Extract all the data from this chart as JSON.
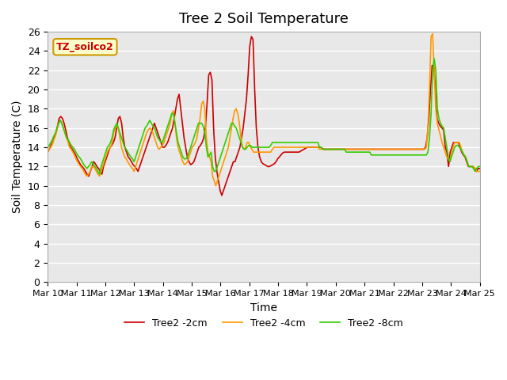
{
  "title": "Tree 2 Soil Temperature",
  "xlabel": "Time",
  "ylabel": "Soil Temperature (C)",
  "ylim": [
    0,
    26
  ],
  "yticks": [
    0,
    2,
    4,
    6,
    8,
    10,
    12,
    14,
    16,
    18,
    20,
    22,
    24,
    26
  ],
  "bg_color": "#e8e8e8",
  "fig_color": "#ffffff",
  "legend_label": "TZ_soilco2",
  "series_labels": [
    "Tree2 -2cm",
    "Tree2 -4cm",
    "Tree2 -8cm"
  ],
  "series_colors": [
    "#cc0000",
    "#ff9900",
    "#33cc00"
  ],
  "x_labels": [
    "Mar 10",
    "Mar 11",
    "Mar 12",
    "Mar 13",
    "Mar 14",
    "Mar 15",
    "Mar 16",
    "Mar 17",
    "Mar 18",
    "Mar 19",
    "Mar 20",
    "Mar 21",
    "Mar 22",
    "Mar 23",
    "Mar 24",
    "Mar 25"
  ],
  "n_days": 16,
  "tree2_2cm": [
    13.5,
    13.8,
    14.2,
    14.5,
    15.0,
    15.5,
    16.2,
    17.0,
    17.2,
    17.0,
    16.5,
    15.8,
    15.0,
    14.5,
    14.0,
    13.8,
    13.5,
    13.2,
    12.8,
    12.5,
    12.2,
    12.0,
    11.8,
    11.5,
    11.2,
    11.0,
    11.5,
    12.0,
    12.5,
    12.3,
    12.0,
    11.8,
    11.5,
    11.2,
    12.0,
    12.5,
    13.0,
    13.5,
    14.0,
    14.2,
    14.5,
    15.0,
    16.0,
    17.0,
    17.2,
    16.5,
    15.0,
    14.0,
    13.5,
    13.0,
    12.8,
    12.5,
    12.2,
    12.0,
    11.8,
    11.5,
    12.0,
    12.5,
    13.0,
    13.5,
    14.0,
    14.5,
    15.0,
    15.5,
    16.0,
    16.5,
    16.0,
    15.5,
    15.0,
    14.5,
    14.0,
    14.0,
    14.2,
    14.5,
    15.0,
    15.5,
    16.0,
    17.0,
    18.0,
    19.0,
    19.5,
    18.0,
    16.5,
    15.0,
    14.0,
    13.0,
    12.5,
    12.2,
    12.3,
    12.5,
    13.0,
    13.5,
    14.0,
    14.2,
    14.5,
    15.0,
    16.0,
    18.5,
    21.5,
    21.8,
    21.0,
    16.0,
    13.0,
    11.5,
    10.5,
    9.5,
    9.0,
    9.5,
    10.0,
    10.5,
    11.0,
    11.5,
    12.0,
    12.5,
    12.5,
    13.0,
    13.5,
    14.0,
    15.0,
    16.0,
    17.5,
    19.0,
    21.5,
    24.5,
    25.5,
    25.2,
    20.0,
    16.0,
    14.0,
    13.0,
    12.5,
    12.3,
    12.2,
    12.1,
    12.0,
    12.0,
    12.1,
    12.2,
    12.3,
    12.5,
    12.8,
    13.0,
    13.2,
    13.4,
    13.5,
    13.5,
    13.5,
    13.5,
    13.5,
    13.5,
    13.5,
    13.5,
    13.5,
    13.5,
    13.6,
    13.7,
    13.8,
    13.9,
    14.0,
    14.0,
    14.0,
    14.0,
    14.0,
    14.0,
    14.0,
    14.0,
    14.0,
    13.9,
    13.8,
    13.8,
    13.8,
    13.8,
    13.8,
    13.8,
    13.8,
    13.8,
    13.8,
    13.8,
    13.8,
    13.8,
    13.8,
    13.8,
    13.8,
    13.8,
    13.8,
    13.8,
    13.8,
    13.8,
    13.8,
    13.8,
    13.8,
    13.8,
    13.8,
    13.8,
    13.8,
    13.8,
    13.8,
    13.8,
    13.8,
    13.8,
    13.8,
    13.8,
    13.8,
    13.8,
    13.8,
    13.8,
    13.8,
    13.8,
    13.8,
    13.8,
    13.8,
    13.8,
    13.8,
    13.8,
    13.8,
    13.8,
    13.8,
    13.8,
    13.8,
    13.8,
    13.8,
    13.8,
    13.8,
    13.8,
    13.8,
    13.8,
    13.8,
    13.8,
    13.8,
    13.8,
    14.0,
    15.0,
    17.0,
    20.0,
    22.5,
    22.5,
    20.0,
    17.0,
    16.5,
    16.2,
    16.0,
    15.8,
    14.0,
    13.5,
    12.0,
    13.5,
    14.0,
    14.5,
    14.5,
    14.5,
    14.5,
    14.0,
    13.5,
    13.2,
    13.0,
    12.5,
    12.0,
    12.0,
    12.0,
    12.0,
    11.8,
    11.5,
    11.8,
    11.8
  ],
  "tree2_4cm": [
    13.5,
    13.8,
    14.0,
    14.3,
    14.8,
    15.2,
    15.8,
    16.5,
    16.8,
    16.5,
    16.0,
    15.5,
    15.0,
    14.5,
    14.0,
    13.8,
    13.5,
    13.2,
    12.8,
    12.5,
    12.2,
    12.0,
    11.8,
    11.5,
    11.2,
    11.0,
    11.2,
    11.5,
    12.0,
    12.0,
    11.8,
    11.5,
    11.2,
    11.0,
    11.5,
    12.0,
    12.5,
    13.0,
    13.5,
    13.8,
    14.0,
    14.5,
    15.5,
    16.0,
    16.2,
    16.0,
    15.0,
    14.0,
    13.5,
    13.0,
    12.8,
    12.5,
    12.2,
    12.0,
    11.8,
    11.5,
    12.0,
    12.5,
    13.0,
    13.5,
    14.0,
    14.5,
    15.0,
    15.5,
    15.8,
    16.0,
    15.8,
    15.5,
    15.0,
    14.5,
    14.0,
    13.8,
    14.0,
    14.2,
    14.5,
    15.0,
    15.5,
    16.0,
    16.5,
    17.5,
    17.8,
    16.5,
    15.0,
    14.0,
    13.5,
    13.0,
    12.5,
    12.2,
    12.3,
    12.5,
    13.0,
    13.5,
    14.0,
    14.2,
    14.5,
    15.0,
    16.0,
    17.0,
    18.5,
    18.8,
    18.0,
    15.0,
    13.5,
    13.0,
    12.5,
    11.0,
    10.5,
    10.0,
    10.5,
    11.0,
    11.5,
    12.0,
    12.5,
    13.0,
    13.5,
    14.0,
    15.0,
    16.0,
    17.0,
    17.8,
    18.0,
    17.5,
    16.5,
    15.0,
    14.0,
    13.8,
    14.0,
    14.5,
    14.5,
    14.0,
    13.8,
    13.5,
    13.5,
    13.5,
    13.5,
    13.5,
    13.5,
    13.5,
    13.5,
    13.5,
    13.5,
    13.5,
    13.5,
    13.8,
    14.0,
    14.0,
    14.0,
    14.0,
    14.0,
    14.0,
    14.0,
    14.0,
    14.0,
    14.0,
    14.0,
    14.0,
    14.0,
    14.0,
    14.0,
    14.0,
    14.0,
    14.0,
    14.0,
    14.0,
    14.0,
    14.0,
    14.0,
    14.0,
    14.0,
    14.0,
    14.0,
    14.0,
    14.0,
    13.8,
    13.8,
    13.8,
    13.8,
    13.8,
    13.8,
    13.8,
    13.8,
    13.8,
    13.8,
    13.8,
    13.8,
    13.8,
    13.8,
    13.8,
    13.8,
    13.8,
    13.8,
    13.8,
    13.8,
    13.8,
    13.8,
    13.8,
    13.8,
    13.8,
    13.8,
    13.8,
    13.8,
    13.8,
    13.8,
    13.8,
    13.8,
    13.8,
    13.8,
    13.8,
    13.8,
    13.8,
    13.8,
    13.8,
    13.8,
    13.8,
    13.8,
    13.8,
    13.8,
    13.8,
    13.8,
    13.8,
    13.8,
    13.8,
    13.8,
    13.8,
    13.8,
    13.8,
    13.8,
    13.8,
    13.8,
    13.8,
    13.8,
    13.8,
    13.8,
    13.8,
    13.8,
    13.8,
    13.8,
    13.8,
    13.8,
    13.8,
    13.8,
    14.0,
    16.0,
    20.0,
    25.5,
    25.8,
    22.0,
    18.0,
    16.5,
    15.8,
    15.2,
    14.5,
    14.0,
    13.5,
    13.0,
    12.8,
    12.5,
    13.5,
    14.0,
    14.5,
    14.5,
    14.5,
    14.5,
    14.0,
    13.5,
    13.2,
    13.0,
    12.5,
    12.0,
    12.0,
    12.0,
    12.0,
    11.8,
    11.5,
    11.5,
    11.5
  ],
  "tree2_8cm": [
    14.0,
    14.2,
    14.5,
    14.8,
    15.2,
    15.5,
    16.0,
    16.5,
    16.8,
    16.5,
    16.0,
    15.5,
    15.0,
    14.8,
    14.5,
    14.2,
    14.0,
    13.8,
    13.5,
    13.2,
    13.0,
    12.8,
    12.5,
    12.2,
    12.0,
    11.8,
    12.0,
    12.2,
    12.5,
    12.3,
    12.0,
    11.8,
    11.5,
    11.2,
    12.0,
    12.5,
    13.0,
    13.5,
    14.0,
    14.2,
    14.5,
    15.0,
    15.8,
    16.2,
    16.5,
    16.0,
    15.5,
    15.0,
    14.5,
    14.0,
    13.8,
    13.5,
    13.2,
    13.0,
    12.8,
    12.5,
    13.0,
    13.5,
    14.0,
    14.5,
    15.0,
    15.5,
    16.0,
    16.2,
    16.5,
    16.8,
    16.5,
    16.2,
    16.0,
    15.5,
    15.0,
    14.8,
    14.5,
    14.5,
    15.0,
    15.5,
    16.0,
    16.5,
    17.0,
    17.5,
    17.5,
    16.5,
    15.5,
    14.5,
    14.0,
    13.5,
    13.0,
    12.8,
    12.8,
    13.0,
    13.5,
    14.0,
    14.5,
    15.0,
    15.5,
    16.0,
    16.5,
    16.5,
    16.5,
    16.2,
    15.5,
    14.0,
    13.0,
    13.2,
    13.5,
    12.0,
    11.5,
    11.5,
    12.0,
    12.5,
    13.0,
    13.5,
    14.0,
    14.5,
    15.0,
    15.5,
    16.0,
    16.5,
    16.5,
    16.2,
    16.0,
    15.5,
    15.0,
    14.5,
    14.0,
    13.8,
    13.8,
    14.0,
    14.2,
    14.2,
    14.0,
    14.0,
    14.0,
    14.0,
    14.0,
    14.0,
    14.0,
    14.0,
    14.0,
    14.0,
    14.0,
    14.0,
    14.2,
    14.5,
    14.5,
    14.5,
    14.5,
    14.5,
    14.5,
    14.5,
    14.5,
    14.5,
    14.5,
    14.5,
    14.5,
    14.5,
    14.5,
    14.5,
    14.5,
    14.5,
    14.5,
    14.5,
    14.5,
    14.5,
    14.5,
    14.5,
    14.5,
    14.5,
    14.5,
    14.5,
    14.5,
    14.5,
    14.5,
    14.0,
    14.0,
    13.8,
    13.8,
    13.8,
    13.8,
    13.8,
    13.8,
    13.8,
    13.8,
    13.8,
    13.8,
    13.8,
    13.8,
    13.8,
    13.8,
    13.8,
    13.5,
    13.5,
    13.5,
    13.5,
    13.5,
    13.5,
    13.5,
    13.5,
    13.5,
    13.5,
    13.5,
    13.5,
    13.5,
    13.5,
    13.5,
    13.5,
    13.2,
    13.2,
    13.2,
    13.2,
    13.2,
    13.2,
    13.2,
    13.2,
    13.2,
    13.2,
    13.2,
    13.2,
    13.2,
    13.2,
    13.2,
    13.2,
    13.2,
    13.2,
    13.2,
    13.2,
    13.2,
    13.2,
    13.2,
    13.2,
    13.2,
    13.2,
    13.2,
    13.2,
    13.2,
    13.2,
    13.2,
    13.2,
    13.2,
    13.2,
    13.2,
    13.2,
    13.5,
    15.0,
    17.5,
    22.0,
    23.2,
    22.0,
    18.0,
    17.0,
    16.5,
    16.2,
    16.0,
    15.0,
    14.0,
    13.0,
    12.5,
    13.0,
    13.5,
    14.0,
    14.2,
    14.2,
    14.0,
    13.8,
    13.5,
    13.2,
    13.0,
    12.5,
    12.0,
    12.0,
    12.0,
    11.8,
    11.5,
    11.8,
    12.0,
    12.0
  ]
}
